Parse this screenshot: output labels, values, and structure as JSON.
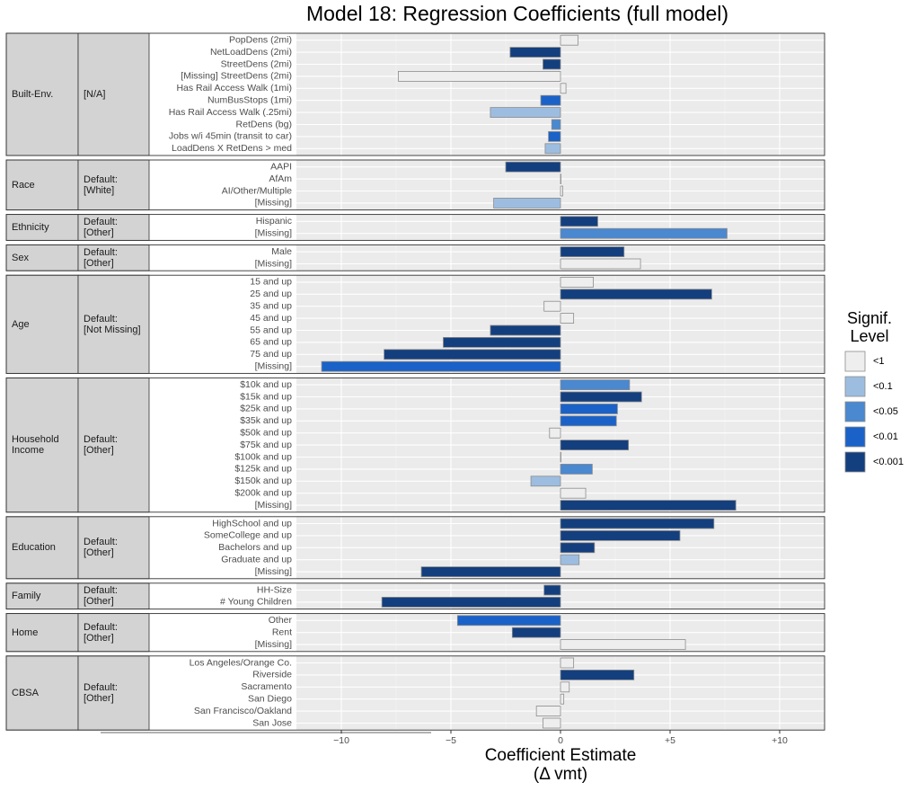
{
  "chart_data": {
    "type": "bar",
    "orientation": "horizontal",
    "title": "Model 18: Regression Coefficients (full model)",
    "x_label_lines": [
      "Coefficient Estimate",
      "(Δ vmt)"
    ],
    "xlim": [
      -12.05,
      12.05
    ],
    "xticks": [
      {
        "value": -10,
        "label": "−10"
      },
      {
        "value": -5,
        "label": "−5"
      },
      0,
      {
        "value": 5,
        "label": "+5"
      },
      {
        "value": 10,
        "label": "+10"
      }
    ],
    "grid": true,
    "legend": {
      "position": "right",
      "title_lines": [
        "Signif.",
        "Level"
      ],
      "levels": [
        {
          "label": "<1",
          "color": "#eeeeee"
        },
        {
          "label": "<0.1",
          "color": "#9dbde0"
        },
        {
          "label": "<0.05",
          "color": "#4a88d0"
        },
        {
          "label": "<0.01",
          "color": "#1a62c8"
        },
        {
          "label": "<0.001",
          "color": "#143f7e"
        }
      ]
    },
    "panels": [
      {
        "group": "Built-Env.",
        "reference": "[N/A]",
        "categories": [
          "PopDens (2mi)",
          "NetLoadDens (2mi)",
          "StreetDens (2mi)",
          "[Missing] StreetDens (2mi)",
          "Has Rail Access Walk (1mi)",
          "NumBusStops (1mi)",
          "Has Rail Access Walk (.25mi)",
          "RetDens (bg)",
          "Jobs w/i 45min (transit to car)",
          "LoadDens X RetDens > med"
        ],
        "values": [
          0.8,
          -2.3,
          -0.8,
          -7.4,
          0.25,
          -0.9,
          -3.2,
          -0.4,
          -0.55,
          -0.7
        ],
        "levels": [
          "<1",
          "<0.001",
          "<0.001",
          "<1",
          "<1",
          "<0.01",
          "<0.1",
          "<0.05",
          "<0.01",
          "<0.1"
        ]
      },
      {
        "group": "Race",
        "reference": "Default:\n[White]",
        "categories": [
          "AAPI",
          "AfAm",
          "AI/Other/Multiple",
          "[Missing]"
        ],
        "values": [
          -2.5,
          0.02,
          0.1,
          -3.05
        ],
        "levels": [
          "<0.001",
          "<1",
          "<1",
          "<0.1"
        ]
      },
      {
        "group": "Ethnicity",
        "reference": "Default:\n[Other]",
        "categories": [
          "Hispanic",
          "[Missing]"
        ],
        "values": [
          1.7,
          7.6
        ],
        "levels": [
          "<0.001",
          "<0.05"
        ]
      },
      {
        "group": "Sex",
        "reference": "Default:\n[Other]",
        "categories": [
          "Male",
          "[Missing]"
        ],
        "values": [
          2.9,
          3.65
        ],
        "levels": [
          "<0.001",
          "<1"
        ]
      },
      {
        "group": "Age",
        "reference": "Default:\n[Not Missing]",
        "categories": [
          "15 and up",
          "25 and up",
          "35 and up",
          "45 and up",
          "55 and up",
          "65 and up",
          "75 and up",
          "[Missing]"
        ],
        "values": [
          1.5,
          6.9,
          -0.75,
          0.6,
          -3.2,
          -5.35,
          -8.05,
          -10.9
        ],
        "levels": [
          "<1",
          "<0.001",
          "<1",
          "<1",
          "<0.001",
          "<0.001",
          "<0.001",
          "<0.01"
        ]
      },
      {
        "group": "Household\nIncome",
        "reference": "Default:\n[Other]",
        "categories": [
          "$10k and up",
          "$15k and up",
          "$25k and up",
          "$35k and up",
          "$50k and up",
          "$75k and up",
          "$100k and up",
          "$125k and up",
          "$150k and up",
          "$200k and up",
          "[Missing]"
        ],
        "values": [
          3.15,
          3.7,
          2.6,
          2.55,
          -0.5,
          3.1,
          0.02,
          1.45,
          -1.35,
          1.15,
          8.0
        ],
        "levels": [
          "<0.05",
          "<0.001",
          "<0.01",
          "<0.01",
          "<1",
          "<0.001",
          "<1",
          "<0.05",
          "<0.1",
          "<1",
          "<0.001"
        ]
      },
      {
        "group": "Education",
        "reference": "Default:\n[Other]",
        "categories": [
          "HighSchool and up",
          "SomeCollege and up",
          "Bachelors and up",
          "Graduate and up",
          "[Missing]"
        ],
        "values": [
          7.0,
          5.45,
          1.55,
          0.85,
          -6.35
        ],
        "levels": [
          "<0.001",
          "<0.001",
          "<0.001",
          "<0.1",
          "<0.001"
        ]
      },
      {
        "group": "Family",
        "reference": "Default:\n[Other]",
        "categories": [
          "HH-Size",
          "# Young Children"
        ],
        "values": [
          -0.75,
          -8.15
        ],
        "levels": [
          "<0.001",
          "<0.001"
        ]
      },
      {
        "group": "Home",
        "reference": "Default:\n[Other]",
        "categories": [
          "Other",
          "Rent",
          "[Missing]"
        ],
        "values": [
          -4.7,
          -2.2,
          5.7
        ],
        "levels": [
          "<0.01",
          "<0.001",
          "<1"
        ]
      },
      {
        "group": "CBSA",
        "reference": "Default:\n[Other]",
        "categories": [
          "Los Angeles/Orange Co.",
          "Riverside",
          "Sacramento",
          "San Diego",
          "San Francisco/Oakland",
          "San Jose"
        ],
        "values": [
          0.6,
          3.35,
          0.4,
          0.15,
          -1.1,
          -0.8
        ],
        "levels": [
          "<1",
          "<0.001",
          "<1",
          "<1",
          "<1",
          "<1"
        ]
      }
    ]
  }
}
